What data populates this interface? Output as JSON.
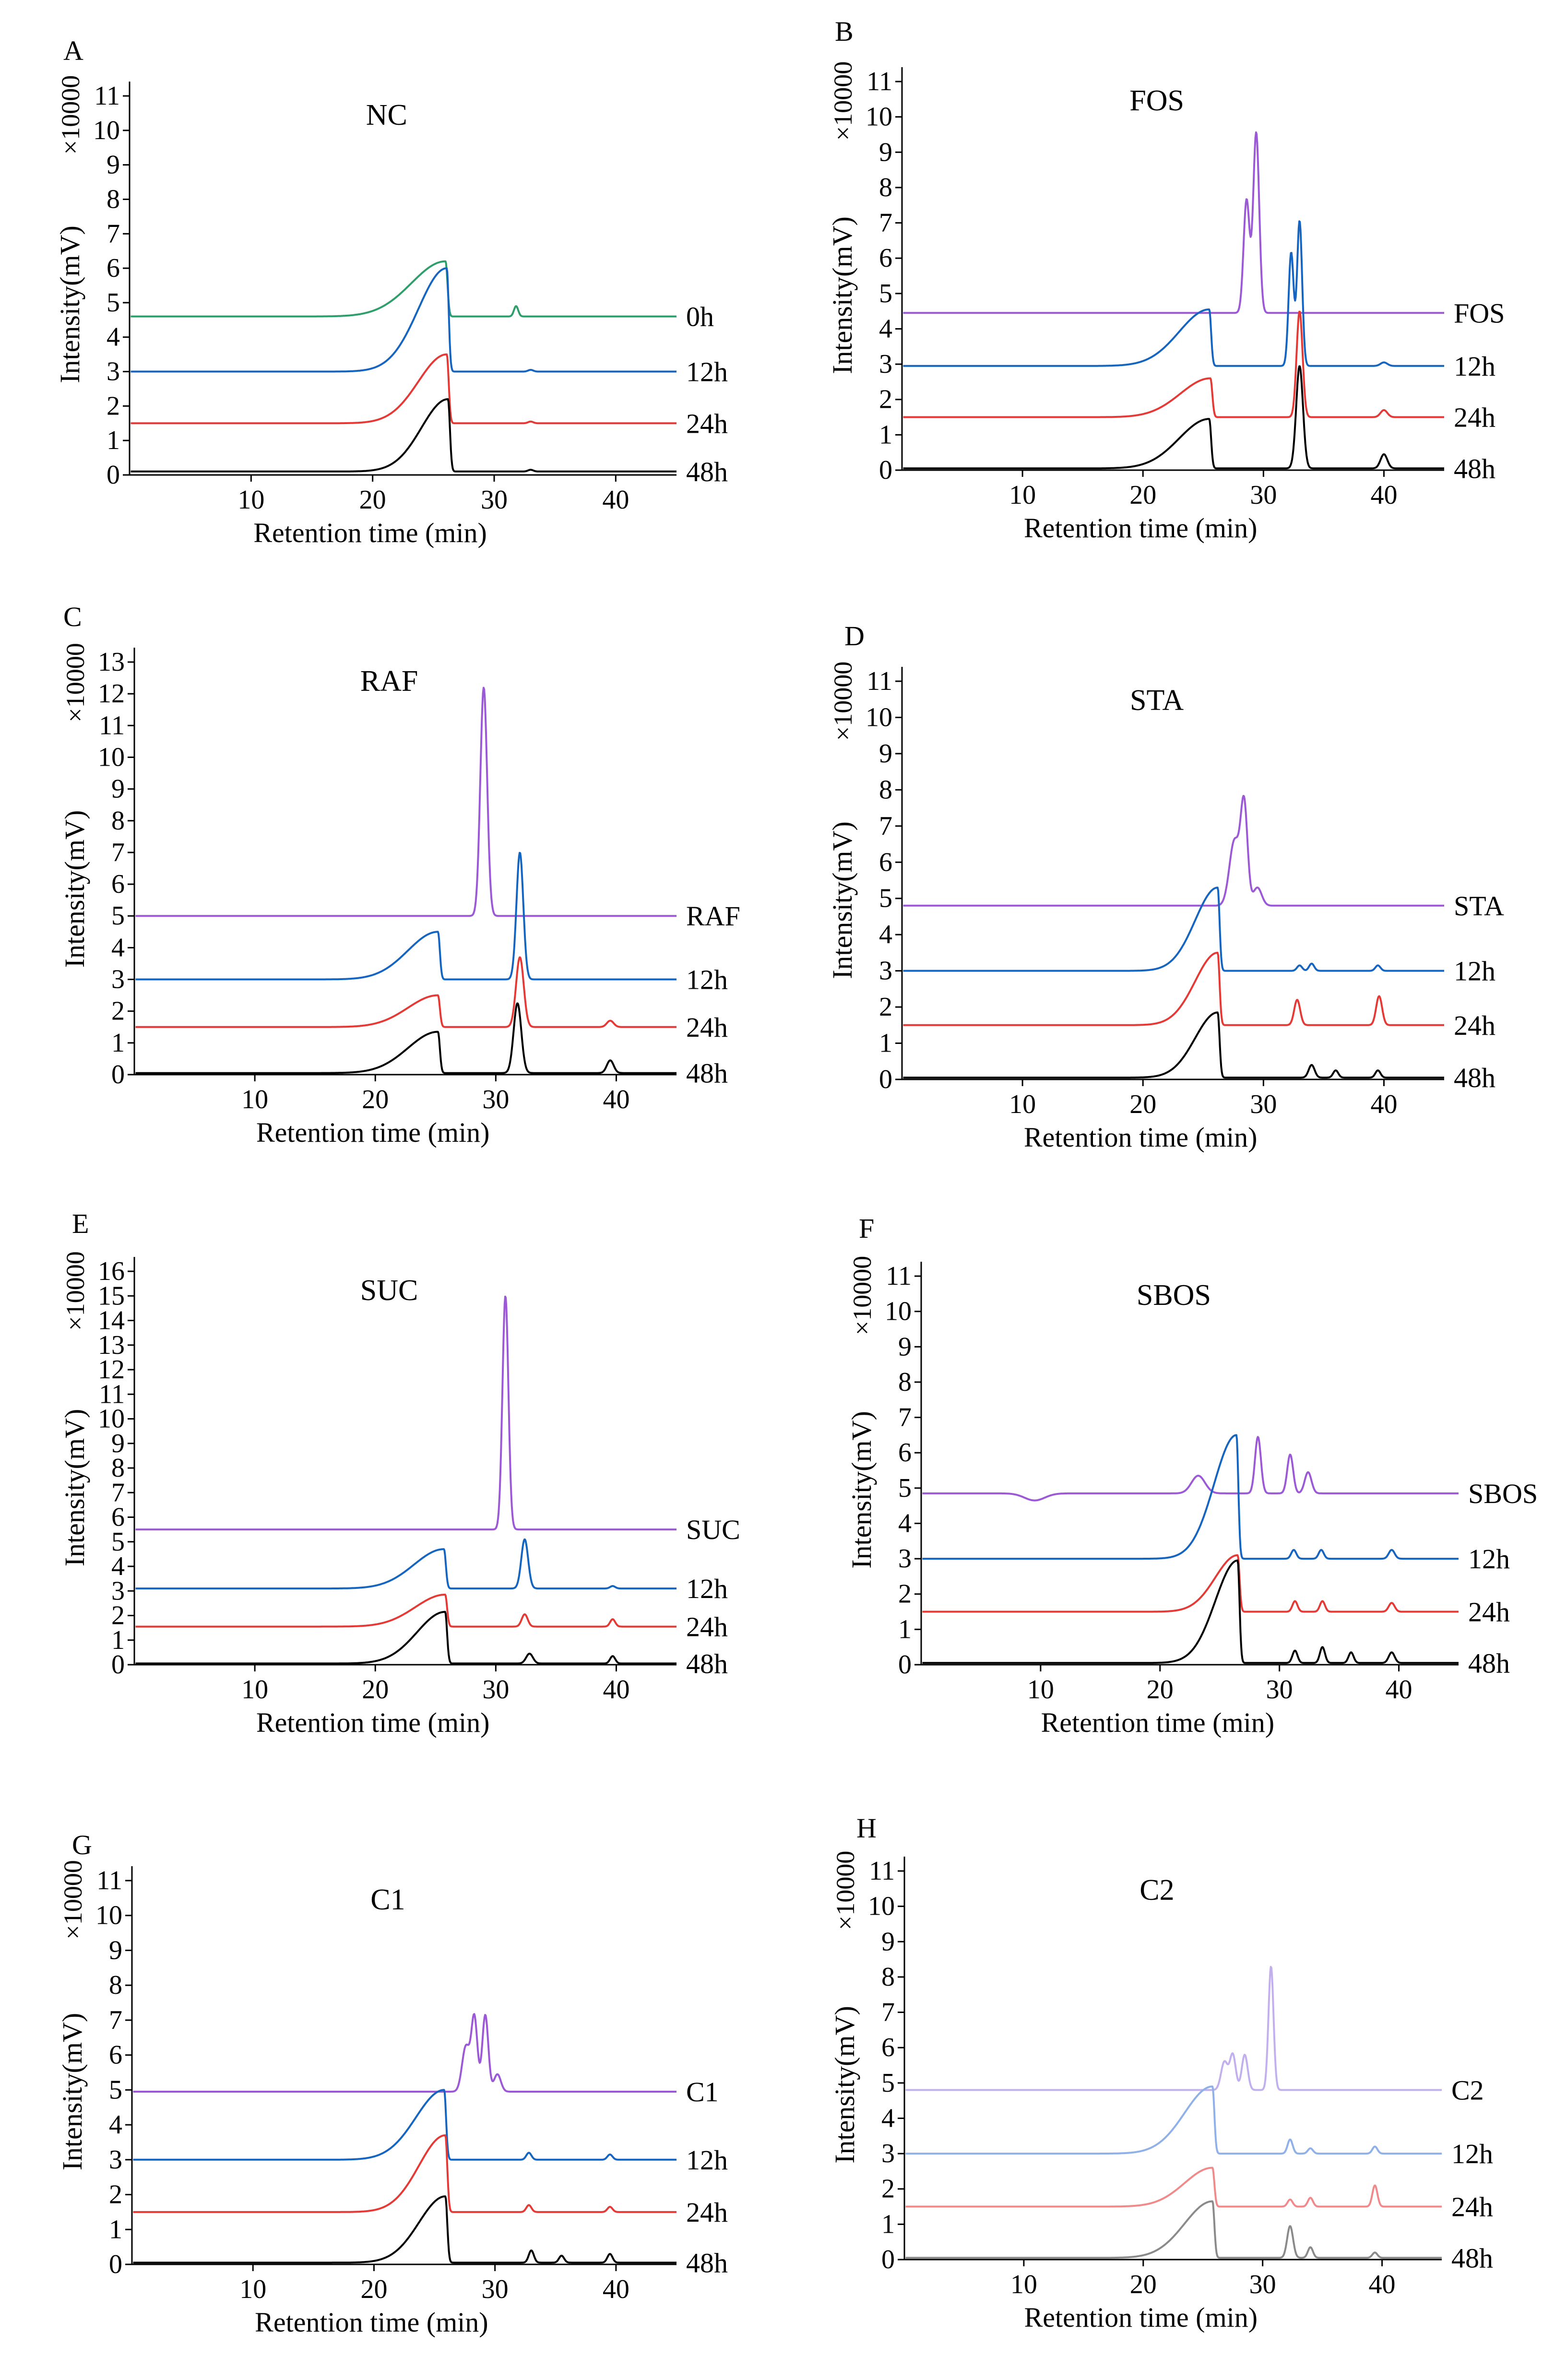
{
  "chart_data": [
    {
      "type": "line",
      "panel": "A",
      "title": "NC",
      "xlabel": "Retention time (min)",
      "ylabel": "Intensity(mV)",
      "multiplier_label": "×10000",
      "xlim": [
        0,
        45
      ],
      "ylim": [
        0,
        11
      ],
      "xticks": [
        10,
        20,
        30,
        40
      ],
      "yticks": [
        0,
        1,
        2,
        3,
        4,
        5,
        6,
        7,
        8,
        9,
        10,
        11
      ],
      "series": [
        {
          "name": "0h",
          "color": "#2e9e6a",
          "baseline": 4.6,
          "peaks": [
            [
              26.0,
              1.6,
              1.8
            ],
            [
              31.8,
              0.3,
              0.25
            ]
          ]
        },
        {
          "name": "12h",
          "color": "#1565c0",
          "baseline": 3.0,
          "peaks": [
            [
              26.1,
              3.0,
              1.5
            ],
            [
              33.0,
              0.05,
              0.3
            ]
          ]
        },
        {
          "name": "24h",
          "color": "#e53935",
          "baseline": 1.5,
          "peaks": [
            [
              26.1,
              2.0,
              1.5
            ],
            [
              33.0,
              0.05,
              0.3
            ]
          ]
        },
        {
          "name": "48h",
          "color": "#000000",
          "baseline": 0.1,
          "peaks": [
            [
              26.2,
              2.1,
              1.4
            ],
            [
              33.0,
              0.05,
              0.3
            ]
          ]
        }
      ]
    },
    {
      "type": "line",
      "panel": "B",
      "title": "FOS",
      "xlabel": "Retention time (min)",
      "ylabel": "Intensity(mV)",
      "multiplier_label": "×10000",
      "xlim": [
        0,
        45
      ],
      "ylim": [
        0,
        11
      ],
      "xticks": [
        10,
        20,
        30,
        40
      ],
      "yticks": [
        0,
        1,
        2,
        3,
        4,
        5,
        6,
        7,
        8,
        9,
        10,
        11
      ],
      "series": [
        {
          "name": "FOS",
          "color": "#9b59d6",
          "baseline": 4.45,
          "peaks": [
            [
              28.6,
              3.2,
              0.35
            ],
            [
              29.4,
              5.1,
              0.35
            ]
          ]
        },
        {
          "name": "12h",
          "color": "#1565c0",
          "baseline": 2.95,
          "peaks": [
            [
              25.5,
              1.6,
              1.6
            ],
            [
              32.3,
              3.2,
              0.3
            ],
            [
              33.0,
              4.1,
              0.3
            ],
            [
              40.0,
              0.1,
              0.4
            ]
          ]
        },
        {
          "name": "24h",
          "color": "#e53935",
          "baseline": 1.5,
          "peaks": [
            [
              25.6,
              1.1,
              1.6
            ],
            [
              33.0,
              3.0,
              0.35
            ],
            [
              40.0,
              0.2,
              0.4
            ]
          ]
        },
        {
          "name": "48h",
          "color": "#000000",
          "baseline": 0.05,
          "peaks": [
            [
              25.5,
              1.4,
              1.6
            ],
            [
              33.0,
              2.9,
              0.4
            ],
            [
              40.0,
              0.4,
              0.4
            ]
          ]
        }
      ]
    },
    {
      "type": "line",
      "panel": "C",
      "title": "RAF",
      "xlabel": "Retention time (min)",
      "ylabel": "Intensity(mV)",
      "multiplier_label": "×10000",
      "xlim": [
        0,
        45
      ],
      "ylim": [
        0,
        13
      ],
      "xticks": [
        10,
        20,
        30,
        40
      ],
      "yticks": [
        0,
        1,
        2,
        3,
        4,
        5,
        6,
        7,
        8,
        9,
        10,
        11,
        12,
        13
      ],
      "series": [
        {
          "name": "RAF",
          "color": "#9b59d6",
          "baseline": 5.0,
          "peaks": [
            [
              29.0,
              7.2,
              0.4
            ]
          ]
        },
        {
          "name": "12h",
          "color": "#1565c0",
          "baseline": 3.0,
          "peaks": [
            [
              25.2,
              1.5,
              1.6
            ],
            [
              32.0,
              4.0,
              0.4
            ]
          ]
        },
        {
          "name": "24h",
          "color": "#e53935",
          "baseline": 1.5,
          "peaks": [
            [
              25.2,
              1.0,
              1.6
            ],
            [
              32.0,
              2.2,
              0.45
            ],
            [
              39.5,
              0.2,
              0.4
            ]
          ]
        },
        {
          "name": "48h",
          "color": "#000000",
          "baseline": 0.05,
          "peaks": [
            [
              25.2,
              1.3,
              1.6
            ],
            [
              31.8,
              2.2,
              0.45
            ],
            [
              39.5,
              0.4,
              0.4
            ]
          ]
        }
      ]
    },
    {
      "type": "line",
      "panel": "D",
      "title": "STA",
      "xlabel": "Retention time (min)",
      "ylabel": "Intensity(mV)",
      "multiplier_label": "×10000",
      "xlim": [
        0,
        45
      ],
      "ylim": [
        0,
        11
      ],
      "xticks": [
        10,
        20,
        30,
        40
      ],
      "yticks": [
        0,
        1,
        2,
        3,
        4,
        5,
        6,
        7,
        8,
        9,
        10,
        11
      ],
      "series": [
        {
          "name": "STA",
          "color": "#9b59d6",
          "baseline": 4.8,
          "peaks": [
            [
              27.6,
              1.8,
              0.6
            ],
            [
              28.4,
              2.7,
              0.4
            ],
            [
              29.5,
              0.5,
              0.5
            ]
          ]
        },
        {
          "name": "12h",
          "color": "#1565c0",
          "baseline": 3.0,
          "peaks": [
            [
              26.2,
              2.3,
              1.2
            ],
            [
              33.0,
              0.15,
              0.3
            ],
            [
              34.0,
              0.2,
              0.3
            ],
            [
              39.5,
              0.15,
              0.3
            ]
          ]
        },
        {
          "name": "24h",
          "color": "#e53935",
          "baseline": 1.5,
          "peaks": [
            [
              26.2,
              2.0,
              1.2
            ],
            [
              32.8,
              0.7,
              0.35
            ],
            [
              39.6,
              0.8,
              0.35
            ]
          ]
        },
        {
          "name": "48h",
          "color": "#000000",
          "baseline": 0.05,
          "peaks": [
            [
              26.2,
              1.8,
              1.2
            ],
            [
              34.0,
              0.35,
              0.35
            ],
            [
              36.0,
              0.2,
              0.3
            ],
            [
              39.5,
              0.2,
              0.3
            ]
          ]
        }
      ]
    },
    {
      "type": "line",
      "panel": "E",
      "title": "SUC",
      "xlabel": "Retention time (min)",
      "ylabel": "Intensity(mV)",
      "multiplier_label": "×10000",
      "xlim": [
        0,
        45
      ],
      "ylim": [
        0,
        16
      ],
      "xticks": [
        10,
        20,
        30,
        40
      ],
      "yticks": [
        0,
        1,
        2,
        3,
        4,
        5,
        6,
        7,
        8,
        9,
        10,
        11,
        12,
        13,
        14,
        15,
        16
      ],
      "series": [
        {
          "name": "SUC",
          "color": "#9b59d6",
          "baseline": 5.5,
          "peaks": [
            [
              30.8,
              9.5,
              0.35
            ]
          ]
        },
        {
          "name": "12h",
          "color": "#1565c0",
          "baseline": 3.1,
          "peaks": [
            [
              25.7,
              1.6,
              1.6
            ],
            [
              32.4,
              2.0,
              0.4
            ],
            [
              39.7,
              0.1,
              0.3
            ]
          ]
        },
        {
          "name": "24h",
          "color": "#e53935",
          "baseline": 1.55,
          "peaks": [
            [
              25.8,
              1.3,
              1.6
            ],
            [
              32.4,
              0.5,
              0.35
            ],
            [
              39.7,
              0.3,
              0.3
            ]
          ]
        },
        {
          "name": "48h",
          "color": "#000000",
          "baseline": 0.05,
          "peaks": [
            [
              25.8,
              2.1,
              1.5
            ],
            [
              32.8,
              0.4,
              0.4
            ],
            [
              39.7,
              0.3,
              0.3
            ]
          ]
        }
      ]
    },
    {
      "type": "line",
      "panel": "F",
      "title": "SBOS",
      "xlabel": "Retention time (min)",
      "ylabel": "Intensity(mV)",
      "multiplier_label": "×10000",
      "xlim": [
        0,
        45
      ],
      "ylim": [
        0,
        11
      ],
      "xticks": [
        10,
        20,
        30,
        40
      ],
      "yticks": [
        0,
        1,
        2,
        3,
        4,
        5,
        6,
        7,
        8,
        9,
        10,
        11
      ],
      "series": [
        {
          "name": "SBOS",
          "color": "#9b59d6",
          "baseline": 4.85,
          "peaks": [
            [
              9.5,
              -0.2,
              1.2
            ],
            [
              23.2,
              0.5,
              0.8
            ],
            [
              28.2,
              1.6,
              0.35
            ],
            [
              30.9,
              1.1,
              0.35
            ],
            [
              32.4,
              0.6,
              0.4
            ]
          ]
        },
        {
          "name": "12h",
          "color": "#1565c0",
          "baseline": 3.0,
          "peaks": [
            [
              26.4,
              3.5,
              1.2
            ],
            [
              31.2,
              0.25,
              0.3
            ],
            [
              33.5,
              0.25,
              0.3
            ],
            [
              39.4,
              0.25,
              0.35
            ]
          ]
        },
        {
          "name": "24h",
          "color": "#e53935",
          "baseline": 1.5,
          "peaks": [
            [
              26.5,
              1.6,
              1.2
            ],
            [
              31.3,
              0.3,
              0.3
            ],
            [
              33.6,
              0.3,
              0.3
            ],
            [
              39.4,
              0.25,
              0.35
            ]
          ]
        },
        {
          "name": "48h",
          "color": "#000000",
          "baseline": 0.05,
          "peaks": [
            [
              26.5,
              2.9,
              1.2
            ],
            [
              31.3,
              0.35,
              0.3
            ],
            [
              33.6,
              0.45,
              0.3
            ],
            [
              36.0,
              0.3,
              0.3
            ],
            [
              39.4,
              0.3,
              0.35
            ]
          ]
        }
      ]
    },
    {
      "type": "line",
      "panel": "G",
      "title": "C1",
      "xlabel": "Retention time (min)",
      "ylabel": "Intensity(mV)",
      "multiplier_label": "×10000",
      "xlim": [
        0,
        45
      ],
      "ylim": [
        0,
        11
      ],
      "xticks": [
        10,
        20,
        30,
        40
      ],
      "yticks": [
        0,
        1,
        2,
        3,
        4,
        5,
        6,
        7,
        8,
        9,
        10,
        11
      ],
      "series": [
        {
          "name": "C1",
          "color": "#9b59d6",
          "baseline": 4.95,
          "peaks": [
            [
              27.6,
              1.3,
              0.45
            ],
            [
              28.3,
              2.1,
              0.35
            ],
            [
              29.2,
              2.2,
              0.35
            ],
            [
              30.2,
              0.5,
              0.4
            ]
          ]
        },
        {
          "name": "12h",
          "color": "#1565c0",
          "baseline": 3.0,
          "peaks": [
            [
              25.8,
              2.0,
              1.5
            ],
            [
              32.8,
              0.2,
              0.3
            ],
            [
              39.5,
              0.15,
              0.3
            ]
          ]
        },
        {
          "name": "24h",
          "color": "#e53935",
          "baseline": 1.5,
          "peaks": [
            [
              25.9,
              2.2,
              1.4
            ],
            [
              32.8,
              0.2,
              0.3
            ],
            [
              39.5,
              0.15,
              0.3
            ]
          ]
        },
        {
          "name": "48h",
          "color": "#000000",
          "baseline": 0.05,
          "peaks": [
            [
              25.9,
              1.9,
              1.4
            ],
            [
              33.0,
              0.35,
              0.3
            ],
            [
              35.5,
              0.2,
              0.3
            ],
            [
              39.5,
              0.25,
              0.3
            ]
          ]
        }
      ]
    },
    {
      "type": "line",
      "panel": "H",
      "title": "C2",
      "xlabel": "Retention time (min)",
      "ylabel": "Intensity(mV)",
      "multiplier_label": "×10000",
      "xlim": [
        0,
        45
      ],
      "ylim": [
        0,
        11
      ],
      "xticks": [
        10,
        20,
        30,
        40
      ],
      "yticks": [
        0,
        1,
        2,
        3,
        4,
        5,
        6,
        7,
        8,
        9,
        10,
        11
      ],
      "series": [
        {
          "name": "C2",
          "color": "#c2b0ee",
          "baseline": 4.8,
          "peaks": [
            [
              26.8,
              0.8,
              0.4
            ],
            [
              27.5,
              1.0,
              0.35
            ],
            [
              28.5,
              1.0,
              0.35
            ],
            [
              30.7,
              3.5,
              0.3
            ]
          ]
        },
        {
          "name": "12h",
          "color": "#8fb0e8",
          "baseline": 3.0,
          "peaks": [
            [
              25.8,
              1.9,
              1.5
            ],
            [
              32.3,
              0.4,
              0.3
            ],
            [
              34.0,
              0.15,
              0.3
            ],
            [
              39.4,
              0.2,
              0.3
            ]
          ]
        },
        {
          "name": "24h",
          "color": "#f08a8a",
          "baseline": 1.5,
          "peaks": [
            [
              25.8,
              1.1,
              1.5
            ],
            [
              32.3,
              0.2,
              0.3
            ],
            [
              34.0,
              0.25,
              0.3
            ],
            [
              39.4,
              0.6,
              0.3
            ]
          ]
        },
        {
          "name": "48h",
          "color": "#8a8a8a",
          "baseline": 0.05,
          "peaks": [
            [
              25.8,
              1.6,
              1.5
            ],
            [
              32.3,
              0.9,
              0.35
            ],
            [
              34.0,
              0.3,
              0.3
            ],
            [
              39.4,
              0.15,
              0.3
            ]
          ]
        }
      ]
    }
  ]
}
